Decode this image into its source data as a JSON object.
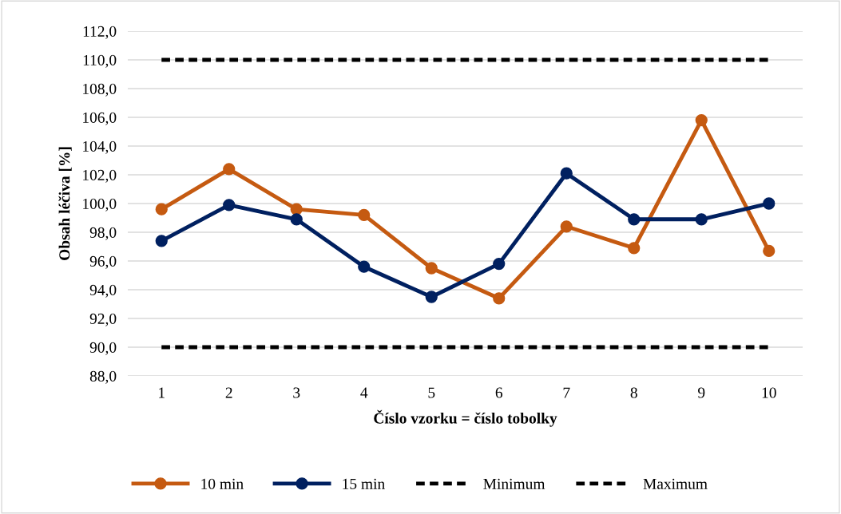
{
  "chart_data": {
    "type": "line",
    "xlabel": "Číslo vzorku = číslo tobolky",
    "ylabel": "Obsah léčiva [%]",
    "categories": [
      "1",
      "2",
      "3",
      "4",
      "5",
      "6",
      "7",
      "8",
      "9",
      "10"
    ],
    "series": [
      {
        "name": "10 min",
        "color": "#c55a11",
        "marker": "circle",
        "line_style": "solid",
        "values": [
          99.6,
          102.4,
          99.6,
          99.2,
          95.5,
          93.4,
          98.4,
          96.9,
          105.8,
          96.7
        ]
      },
      {
        "name": "15 min",
        "color": "#002060",
        "marker": "circle",
        "line_style": "solid",
        "values": [
          97.4,
          99.9,
          98.9,
          95.6,
          93.5,
          95.8,
          102.1,
          98.9,
          98.9,
          100.0
        ]
      },
      {
        "name": "Minimum",
        "color": "#000000",
        "marker": "none",
        "line_style": "dashed",
        "values": [
          90,
          90,
          90,
          90,
          90,
          90,
          90,
          90,
          90,
          90
        ]
      },
      {
        "name": "Maximum",
        "color": "#000000",
        "marker": "none",
        "line_style": "dashed",
        "values": [
          110,
          110,
          110,
          110,
          110,
          110,
          110,
          110,
          110,
          110
        ]
      }
    ],
    "ylim": [
      88,
      112
    ],
    "yticks": [
      {
        "value": 88,
        "label": "88,0"
      },
      {
        "value": 90,
        "label": "90,0"
      },
      {
        "value": 92,
        "label": "92,0"
      },
      {
        "value": 94,
        "label": "94,0"
      },
      {
        "value": 96,
        "label": "96,0"
      },
      {
        "value": 98,
        "label": "98,0"
      },
      {
        "value": 100,
        "label": "100,0"
      },
      {
        "value": 102,
        "label": "102,0"
      },
      {
        "value": 104,
        "label": "104,0"
      },
      {
        "value": 106,
        "label": "106,0"
      },
      {
        "value": 108,
        "label": "108,0"
      },
      {
        "value": 110,
        "label": "110,0"
      },
      {
        "value": 112,
        "label": "112,0"
      }
    ],
    "grid": "y",
    "legend": "bottom"
  }
}
